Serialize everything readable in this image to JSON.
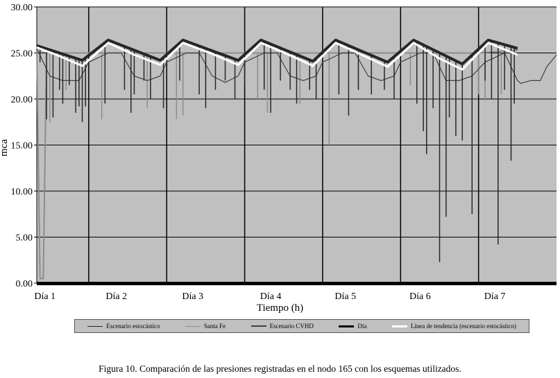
{
  "chart_data": {
    "type": "line",
    "xlabel": "Tiempo  (h)",
    "ylabel": "mca",
    "ylim": [
      0,
      30
    ],
    "yticks": [
      "0.00",
      "5.00",
      "10.00",
      "15.00",
      "20.00",
      "25.00",
      "30.00"
    ],
    "xlim_hours": [
      0,
      160
    ],
    "day_boundaries_hours": [
      16,
      40,
      64,
      88,
      112,
      136
    ],
    "xtick_labels": [
      "Día 1",
      "Día 2",
      "Día 3",
      "Día 4",
      "Día 5",
      "Día 6",
      "Día 7"
    ],
    "xtick_hours": [
      2.5,
      24.5,
      48,
      72,
      95,
      118,
      141
    ],
    "grid": true,
    "legend_position": "bottom",
    "series": [
      {
        "name": "Escenario estocástico",
        "color": "#262626",
        "points": [
          [
            0,
            25.8
          ],
          [
            14,
            24.2
          ],
          [
            22,
            26.4
          ],
          [
            38,
            24.2
          ],
          [
            45,
            26.4
          ],
          [
            62,
            24.2
          ],
          [
            69,
            26.4
          ],
          [
            85,
            24.1
          ],
          [
            92,
            26.4
          ],
          [
            108,
            24.0
          ],
          [
            116,
            26.4
          ],
          [
            131,
            23.8
          ],
          [
            139,
            26.4
          ],
          [
            148,
            25.5
          ]
        ],
        "spikes": [
          [
            1,
            24
          ],
          [
            3,
            17.8
          ],
          [
            5,
            18
          ],
          [
            7,
            21
          ],
          [
            8,
            19.5
          ],
          [
            10,
            21.5
          ],
          [
            12,
            18.5
          ],
          [
            13,
            19.2
          ],
          [
            14,
            17.5
          ],
          [
            15,
            19.2
          ],
          [
            21,
            19.5
          ],
          [
            27,
            21
          ],
          [
            29,
            18.5
          ],
          [
            30,
            20.5
          ],
          [
            33,
            22
          ],
          [
            35,
            20
          ],
          [
            39,
            19
          ],
          [
            44,
            22
          ],
          [
            50,
            20.5
          ],
          [
            52,
            19
          ],
          [
            55,
            21
          ],
          [
            58,
            22
          ],
          [
            61,
            20
          ],
          [
            64,
            21.5
          ],
          [
            70,
            21
          ],
          [
            72,
            18.5
          ],
          [
            75,
            22
          ],
          [
            78,
            21
          ],
          [
            80,
            19.5
          ],
          [
            84,
            21
          ],
          [
            86,
            20
          ],
          [
            93,
            20.5
          ],
          [
            96,
            18.2
          ],
          [
            99,
            21
          ],
          [
            103,
            20.5
          ],
          [
            107,
            21
          ],
          [
            110,
            20
          ],
          [
            117,
            19.5
          ],
          [
            119,
            16.5
          ],
          [
            120,
            14
          ],
          [
            122,
            19
          ],
          [
            124,
            2.3
          ],
          [
            126,
            7.2
          ],
          [
            127,
            18
          ],
          [
            129,
            16
          ],
          [
            131,
            15.5
          ],
          [
            134,
            7.5
          ],
          [
            138,
            22
          ],
          [
            140,
            20
          ],
          [
            142,
            4.2
          ],
          [
            144,
            21
          ],
          [
            146,
            13.3
          ],
          [
            147,
            19.5
          ]
        ]
      },
      {
        "name": "Santa Fe",
        "color": "#8c8c8c",
        "points": [
          [
            0,
            25.5
          ],
          [
            1,
            0.5
          ],
          [
            2,
            0.5
          ],
          [
            3,
            25
          ],
          [
            16,
            25
          ],
          [
            40,
            25
          ],
          [
            64,
            25
          ],
          [
            88,
            25
          ],
          [
            112,
            25
          ],
          [
            136,
            25
          ],
          [
            148,
            25.3
          ]
        ],
        "spikes": [
          [
            4,
            17.5
          ],
          [
            9,
            21
          ],
          [
            20,
            17.8
          ],
          [
            34,
            19
          ],
          [
            43,
            17.8
          ],
          [
            45,
            18.2
          ],
          [
            52,
            20
          ],
          [
            68,
            20
          ],
          [
            71,
            18.5
          ],
          [
            81,
            19.5
          ],
          [
            90,
            15
          ],
          [
            99,
            21
          ],
          [
            115,
            21.5
          ],
          [
            136,
            20.5
          ],
          [
            138,
            19.8
          ],
          [
            143,
            20.5
          ]
        ]
      },
      {
        "name": "Escenario CVHD",
        "color": "#404040",
        "points": [
          [
            0,
            25.5
          ],
          [
            4,
            22.5
          ],
          [
            8,
            22
          ],
          [
            13,
            22
          ],
          [
            16,
            24
          ],
          [
            22,
            25
          ],
          [
            26,
            25
          ],
          [
            30,
            22.5
          ],
          [
            34,
            22
          ],
          [
            38,
            22.5
          ],
          [
            40,
            24
          ],
          [
            46,
            25
          ],
          [
            50,
            25
          ],
          [
            54,
            22.5
          ],
          [
            58,
            21.8
          ],
          [
            62,
            22.5
          ],
          [
            64,
            24
          ],
          [
            70,
            25
          ],
          [
            74,
            25
          ],
          [
            78,
            22.5
          ],
          [
            82,
            22
          ],
          [
            86,
            22.5
          ],
          [
            88,
            24
          ],
          [
            94,
            25
          ],
          [
            98,
            25
          ],
          [
            102,
            22.5
          ],
          [
            106,
            22
          ],
          [
            110,
            22.5
          ],
          [
            112,
            24
          ],
          [
            118,
            25
          ],
          [
            122,
            25
          ],
          [
            126,
            22
          ],
          [
            130,
            22
          ],
          [
            134,
            22.5
          ],
          [
            138,
            24
          ],
          [
            144,
            25
          ],
          [
            148,
            22
          ],
          [
            149,
            21.7
          ],
          [
            152,
            22
          ],
          [
            155,
            22
          ],
          [
            157,
            23.5
          ],
          [
            160,
            24.8
          ]
        ]
      },
      {
        "name": "Día",
        "color": "#000000"
      },
      {
        "name": "Línea de tendencia (escenario estocástico)",
        "color": "#ffffff",
        "points": [
          [
            0,
            25.6
          ],
          [
            6,
            24.8
          ],
          [
            14,
            23.6
          ],
          [
            22,
            26.1
          ],
          [
            30,
            24.8
          ],
          [
            38,
            23.7
          ],
          [
            45,
            26.1
          ],
          [
            54,
            24.9
          ],
          [
            62,
            23.7
          ],
          [
            69,
            26.1
          ],
          [
            77,
            24.9
          ],
          [
            85,
            23.6
          ],
          [
            92,
            26.1
          ],
          [
            100,
            24.8
          ],
          [
            108,
            23.5
          ],
          [
            116,
            26.1
          ],
          [
            124,
            24.4
          ],
          [
            131,
            23.2
          ],
          [
            139,
            26.1
          ],
          [
            148,
            24.8
          ]
        ]
      }
    ],
    "plot_background": "#c0c0c0"
  },
  "caption": "Figura 10. Comparación de las presiones registradas en el nodo 165 con los esquemas utilizados."
}
